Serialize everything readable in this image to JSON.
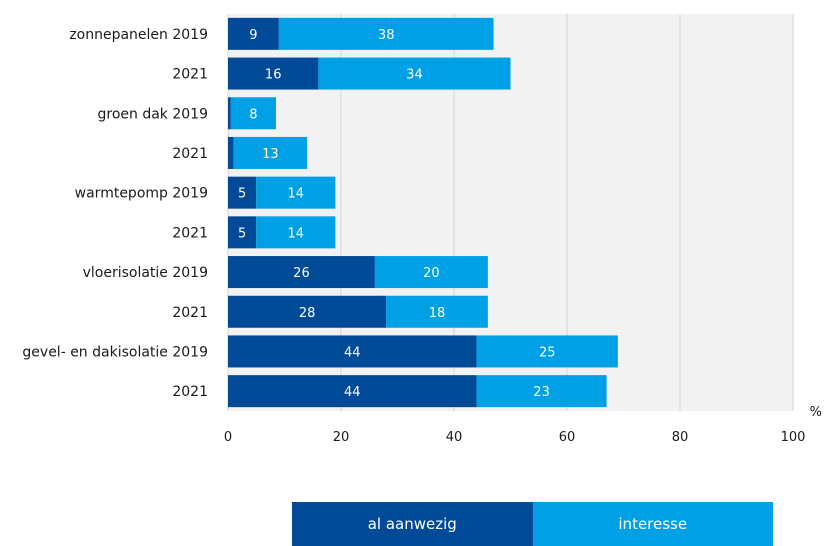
{
  "chart_data": {
    "type": "bar",
    "orientation": "horizontal",
    "stacked": true,
    "categories": [
      "zonnepanelen 2019",
      "2021",
      "groen dak 2019",
      "2021",
      "warmtepomp 2019",
      "2021",
      "vloerisolatie 2019",
      "2021",
      "gevel- en dakisolatie 2019",
      "2021"
    ],
    "series": [
      {
        "name": "al aanwezig",
        "color": "#004a97",
        "values": [
          9,
          16,
          0.5,
          1,
          5,
          5,
          26,
          28,
          44,
          44
        ],
        "labels": [
          "9",
          "16",
          "",
          "",
          "5",
          "5",
          "26",
          "28",
          "44",
          "44"
        ]
      },
      {
        "name": "interesse",
        "color": "#00a0e6",
        "values": [
          38,
          34,
          8,
          13,
          14,
          14,
          20,
          18,
          25,
          23
        ],
        "labels": [
          "38",
          "34",
          "8",
          "13",
          "14",
          "14",
          "20",
          "18",
          "25",
          "23"
        ]
      }
    ],
    "xlim": [
      0,
      100
    ],
    "xticks": [
      "0",
      "20",
      "40",
      "60",
      "80",
      "100"
    ],
    "unit": "%",
    "grid": true,
    "legend_position": "bottom"
  }
}
